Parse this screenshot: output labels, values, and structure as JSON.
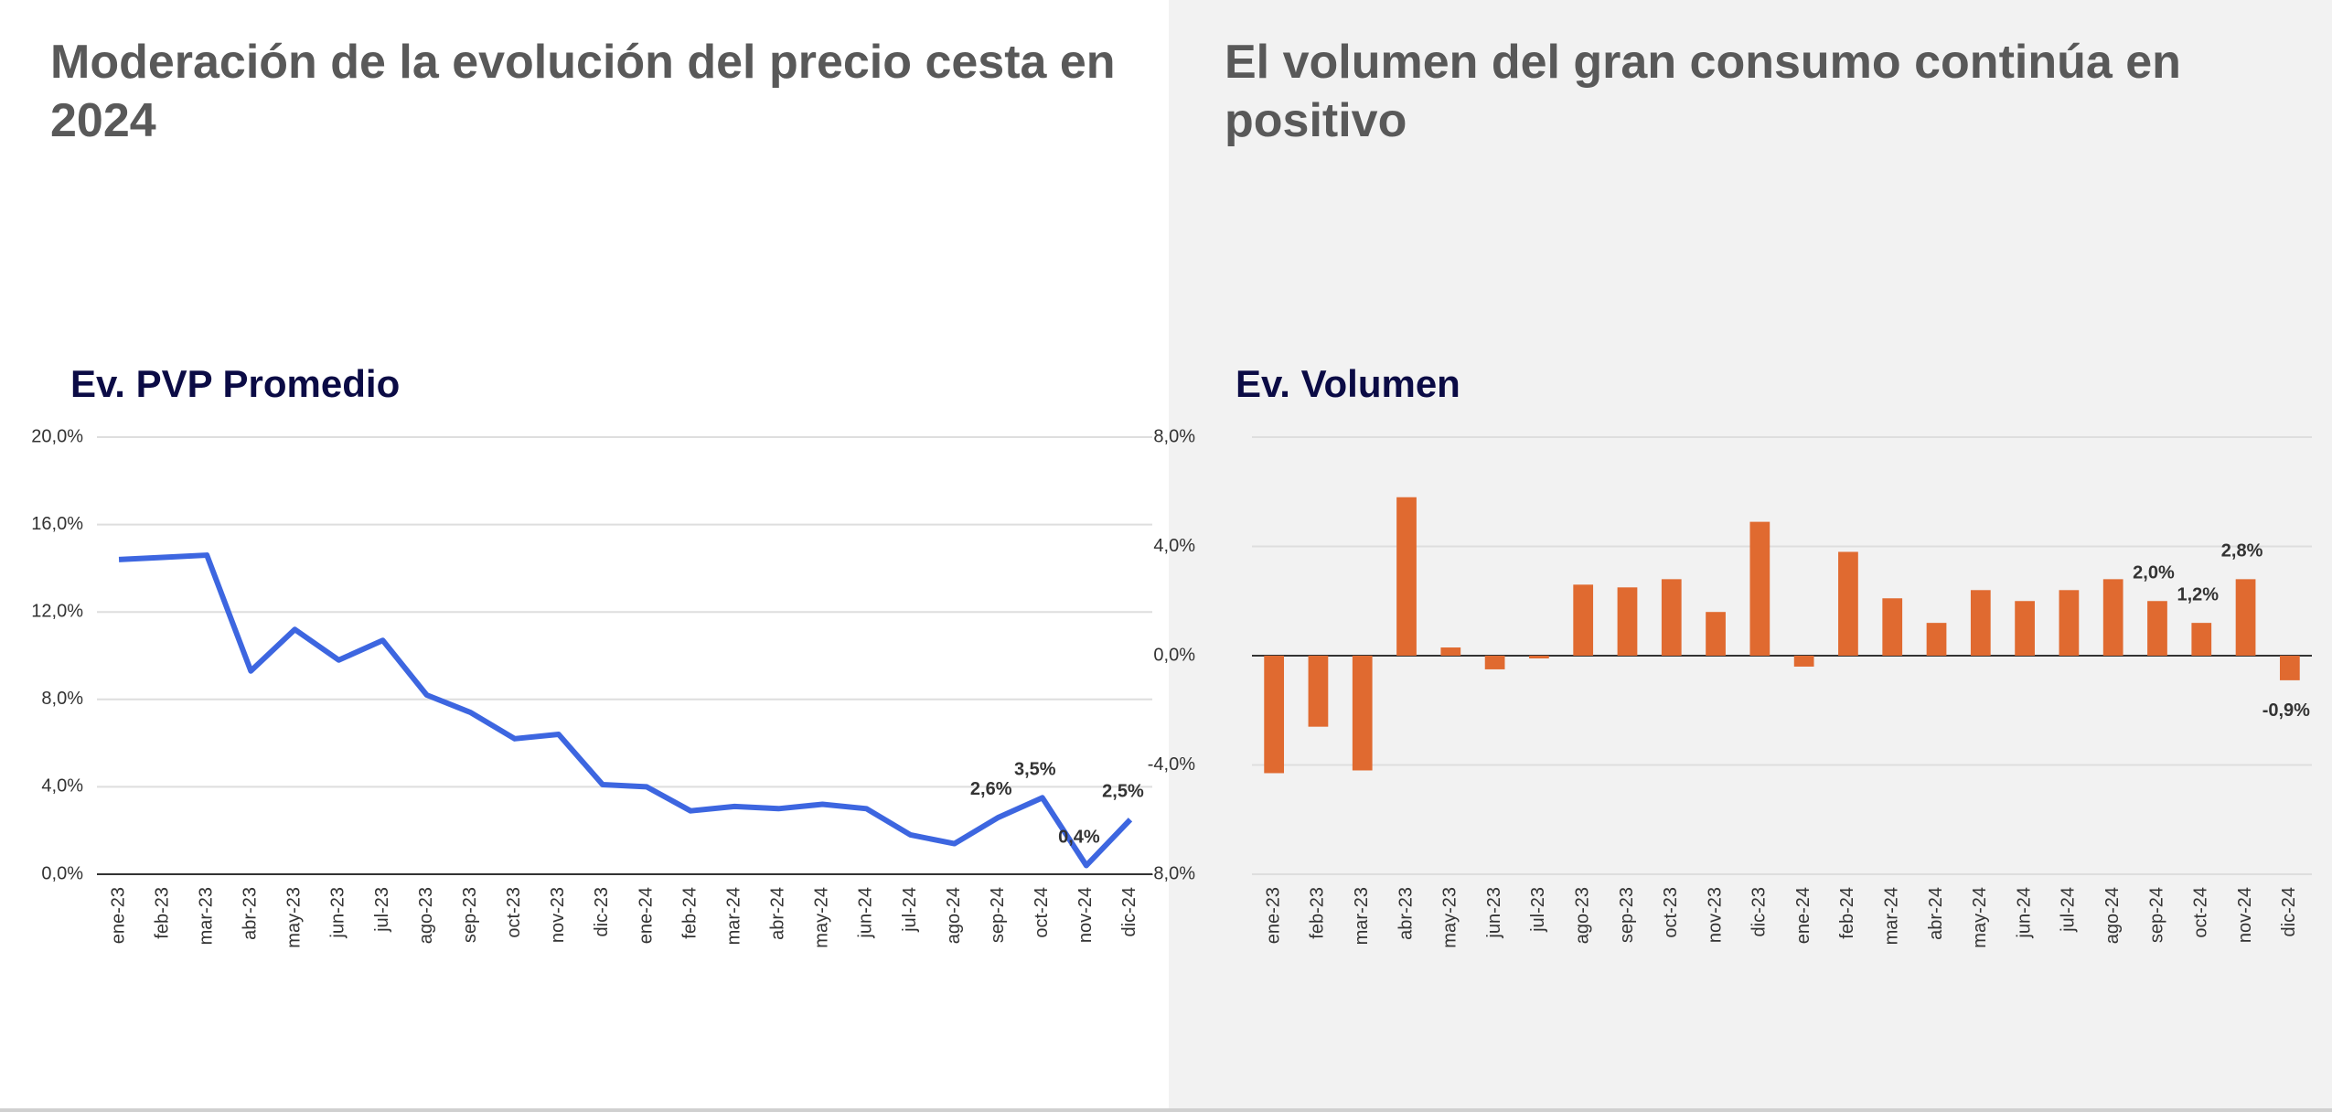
{
  "chart_data": [
    {
      "type": "line",
      "title": "Moderación de la evolución del precio cesta en 2024",
      "subtitle": "Ev. PVP Promedio",
      "categories": [
        "ene-23",
        "feb-23",
        "mar-23",
        "abr-23",
        "may-23",
        "jun-23",
        "jul-23",
        "ago-23",
        "sep-23",
        "oct-23",
        "nov-23",
        "dic-23",
        "ene-24",
        "feb-24",
        "mar-24",
        "abr-24",
        "may-24",
        "jun-24",
        "jul-24",
        "ago-24",
        "sep-24",
        "oct-24",
        "nov-24",
        "dic-24"
      ],
      "values": [
        14.4,
        14.5,
        14.6,
        9.3,
        11.2,
        9.8,
        10.7,
        8.2,
        7.4,
        6.2,
        6.4,
        4.1,
        4.0,
        2.9,
        3.1,
        3.0,
        3.2,
        3.0,
        1.8,
        1.4,
        2.6,
        3.5,
        0.4,
        2.5
      ],
      "value_labels": [
        null,
        null,
        null,
        null,
        null,
        null,
        null,
        null,
        null,
        null,
        null,
        null,
        null,
        null,
        null,
        null,
        null,
        null,
        null,
        null,
        "2,6%",
        "3,5%",
        "0,4%",
        "2,5%"
      ],
      "color": "#3d66e0",
      "ylim": [
        0,
        20
      ],
      "yticks": [
        {
          "value": 0,
          "label": "0,0%"
        },
        {
          "value": 4,
          "label": "4,0%"
        },
        {
          "value": 8,
          "label": "8,0%"
        },
        {
          "value": 12,
          "label": "12,0%"
        },
        {
          "value": 16,
          "label": "16,0%"
        },
        {
          "value": 20,
          "label": "20,0%"
        }
      ],
      "grid": true
    },
    {
      "type": "bar",
      "title": "El volumen del gran consumo continúa en positivo",
      "subtitle": "Ev. Volumen",
      "categories": [
        "ene-23",
        "feb-23",
        "mar-23",
        "abr-23",
        "may-23",
        "jun-23",
        "jul-23",
        "ago-23",
        "sep-23",
        "oct-23",
        "nov-23",
        "dic-23",
        "ene-24",
        "feb-24",
        "mar-24",
        "abr-24",
        "may-24",
        "jun-24",
        "jul-24",
        "ago-24",
        "sep-24",
        "oct-24",
        "nov-24",
        "dic-24"
      ],
      "values": [
        -4.3,
        -2.6,
        -4.2,
        5.8,
        0.3,
        -0.5,
        -0.1,
        2.6,
        2.5,
        2.8,
        1.6,
        4.9,
        -0.4,
        3.8,
        2.1,
        1.2,
        2.4,
        2.0,
        2.4,
        2.8,
        2.0,
        1.2,
        2.8,
        -0.9
      ],
      "value_labels": [
        null,
        null,
        null,
        null,
        null,
        null,
        null,
        null,
        null,
        null,
        null,
        null,
        null,
        null,
        null,
        null,
        null,
        null,
        null,
        null,
        "2,0%",
        "1,2%",
        "2,8%",
        "-0,9%"
      ],
      "color": "#e06a30",
      "ylim": [
        -8,
        8
      ],
      "yticks": [
        {
          "value": -8,
          "label": "-8,0%"
        },
        {
          "value": -4,
          "label": "-4,0%"
        },
        {
          "value": 0,
          "label": "0,0%"
        },
        {
          "value": 4,
          "label": "4,0%"
        },
        {
          "value": 8,
          "label": "8,0%"
        }
      ],
      "grid": true
    }
  ]
}
